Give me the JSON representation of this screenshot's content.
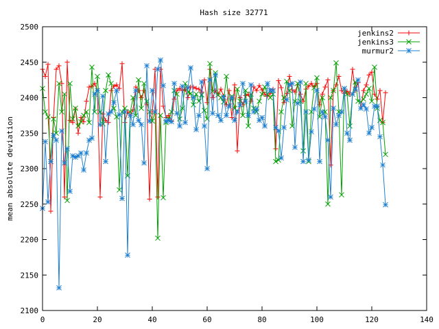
{
  "chart_data": {
    "type": "line",
    "title": "Hash size 32771",
    "xlabel": "",
    "ylabel": "mean absolute deviation",
    "xlim": [
      0,
      140
    ],
    "ylim": [
      2100,
      2500
    ],
    "xticks": [
      0,
      20,
      40,
      60,
      80,
      100,
      120,
      140
    ],
    "yticks": [
      2100,
      2150,
      2200,
      2250,
      2300,
      2350,
      2400,
      2450,
      2500
    ],
    "grid": false,
    "legend_position": "top-right",
    "x": [
      0,
      1,
      2,
      3,
      4,
      5,
      6,
      7,
      8,
      9,
      10,
      11,
      12,
      13,
      14,
      15,
      16,
      17,
      18,
      19,
      20,
      21,
      22,
      23,
      24,
      25,
      26,
      27,
      28,
      29,
      30,
      31,
      32,
      33,
      34,
      35,
      36,
      37,
      38,
      39,
      40,
      41,
      42,
      43,
      44,
      45,
      46,
      47,
      48,
      49,
      50,
      51,
      52,
      53,
      54,
      55,
      56,
      57,
      58,
      59,
      60,
      61,
      62,
      63,
      64,
      65,
      66,
      67,
      68,
      69,
      70,
      71,
      72,
      73,
      74,
      75,
      76,
      77,
      78,
      79,
      80,
      81,
      82,
      83,
      84,
      85,
      86,
      87,
      88,
      89,
      90,
      91,
      92,
      93,
      94,
      95,
      96,
      97,
      98,
      99,
      100,
      101,
      102,
      103,
      104,
      105,
      106,
      107,
      108,
      109,
      110,
      111,
      112,
      113,
      114,
      115,
      116,
      117,
      118,
      119,
      120,
      121,
      122,
      123,
      124,
      125
    ],
    "series": [
      {
        "name": "jenkins2",
        "color": "#ff0000",
        "marker": "plus",
        "values": [
          2440,
          2430,
          2447,
          2240,
          2372,
          2440,
          2445,
          2420,
          2260,
          2450,
          2368,
          2365,
          2384,
          2350,
          2372,
          2366,
          2395,
          2415,
          2416,
          2420,
          2410,
          2260,
          2377,
          2368,
          2365,
          2410,
          2416,
          2418,
          2413,
          2448,
          2365,
          2380,
          2375,
          2383,
          2415,
          2410,
          2400,
          2410,
          2390,
          2257,
          2380,
          2440,
          2260,
          2440,
          2388,
          2372,
          2375,
          2367,
          2398,
          2410,
          2413,
          2410,
          2412,
          2400,
          2415,
          2415,
          2413,
          2412,
          2408,
          2425,
          2393,
          2440,
          2400,
          2410,
          2405,
          2412,
          2402,
          2390,
          2410,
          2372,
          2418,
          2325,
          2400,
          2390,
          2403,
          2405,
          2395,
          2415,
          2410,
          2417,
          2411,
          2405,
          2402,
          2406,
          2412,
          2328,
          2424,
          2414,
          2393,
          2406,
          2430,
          2411,
          2408,
          2418,
          2405,
          2395,
          2412,
          2416,
          2420,
          2415,
          2420,
          2390,
          2405,
          2415,
          2425,
          2305,
          2410,
          2418,
          2430,
          2410,
          2406,
          2409,
          2405,
          2440,
          2410,
          2421,
          2385,
          2410,
          2418,
          2432,
          2436,
          2405,
          2398,
          2410,
          2365,
          2407
        ]
      },
      {
        "name": "jenkins3",
        "color": "#00a000",
        "marker": "cross",
        "values": [
          2413,
          2380,
          2373,
          2310,
          2370,
          2350,
          2420,
          2380,
          2405,
          2255,
          2420,
          2370,
          2385,
          2360,
          2366,
          2375,
          2380,
          2365,
          2443,
          2380,
          2430,
          2380,
          2363,
          2410,
          2432,
          2420,
          2385,
          2373,
          2270,
          2380,
          2385,
          2290,
          2380,
          2400,
          2375,
          2425,
          2385,
          2420,
          2395,
          2380,
          2367,
          2380,
          2202,
          2375,
          2259,
          2365,
          2370,
          2380,
          2410,
          2405,
          2370,
          2385,
          2420,
          2408,
          2406,
          2390,
          2405,
          2395,
          2404,
          2382,
          2370,
          2448,
          2409,
          2435,
          2404,
          2400,
          2394,
          2430,
          2388,
          2402,
          2385,
          2412,
          2395,
          2375,
          2410,
          2360,
          2405,
          2385,
          2380,
          2395,
          2405,
          2415,
          2405,
          2400,
          2405,
          2310,
          2312,
          2380,
          2400,
          2423,
          2410,
          2360,
          2395,
          2420,
          2395,
          2325,
          2420,
          2310,
          2380,
          2414,
          2428,
          2373,
          2400,
          2380,
          2250,
          2400,
          2410,
          2449,
          2380,
          2263,
          2413,
          2405,
          2360,
          2405,
          2422,
          2395,
          2394,
          2398,
          2405,
          2413,
          2395,
          2443,
          2385,
          2368,
          2365,
          2320
        ]
      },
      {
        "name": "murmur2",
        "color": "#1e7fd0",
        "marker": "star",
        "values": [
          2244,
          2338,
          2253,
          2310,
          2347,
          2340,
          2132,
          2353,
          2308,
          2328,
          2268,
          2318,
          2316,
          2318,
          2322,
          2298,
          2322,
          2340,
          2343,
          2405,
          2410,
          2362,
          2402,
          2310,
          2377,
          2380,
          2393,
          2410,
          2376,
          2258,
          2380,
          2178,
          2375,
          2362,
          2410,
          2368,
          2362,
          2308,
          2445,
          2367,
          2410,
          2380,
          2440,
          2453,
          2417,
          2367,
          2368,
          2366,
          2420,
          2378,
          2360,
          2416,
          2365,
          2414,
          2442,
          2400,
          2355,
          2375,
          2422,
          2360,
          2300,
          2425,
          2378,
          2432,
          2375,
          2368,
          2401,
          2375,
          2388,
          2400,
          2368,
          2380,
          2390,
          2420,
          2395,
          2375,
          2418,
          2380,
          2384,
          2368,
          2372,
          2360,
          2420,
          2410,
          2410,
          2358,
          2353,
          2315,
          2358,
          2397,
          2418,
          2420,
          2330,
          2392,
          2422,
          2310,
          2380,
          2312,
          2352,
          2384,
          2410,
          2310,
          2380,
          2373,
          2340,
          2260,
          2385,
          2362,
          2375,
          2380,
          2413,
          2350,
          2340,
          2405,
          2412,
          2425,
          2385,
          2390,
          2384,
          2350,
          2358,
          2388,
          2388,
          2345,
          2305,
          2249
        ]
      }
    ]
  }
}
